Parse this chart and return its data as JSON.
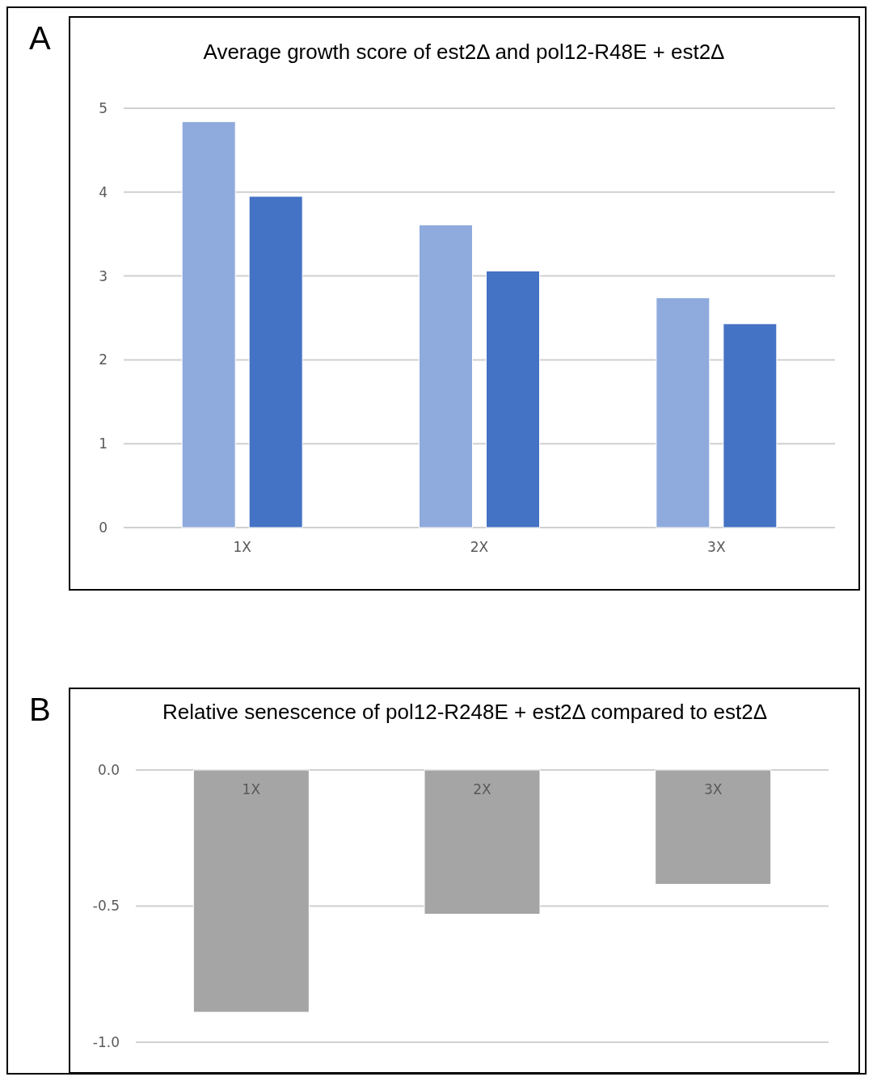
{
  "chart_data": [
    {
      "type": "bar",
      "title": "Average growth score of est2Δ and pol12-R48E + est2Δ",
      "annotations": [
        "A"
      ],
      "categories": [
        "1X",
        "2X",
        "3X"
      ],
      "series": [
        {
          "color": "#8faadc",
          "values": [
            4.84,
            3.61,
            2.74
          ]
        },
        {
          "color": "#4472c4",
          "values": [
            3.95,
            3.06,
            2.43
          ]
        }
      ],
      "ylim": [
        0,
        5
      ],
      "yticks": [
        0,
        1,
        2,
        3,
        4,
        5
      ],
      "grid": "y"
    },
    {
      "type": "bar",
      "title": "Relative senescence of pol12-R248E + est2Δ compared to est2Δ",
      "annotations": [
        "B"
      ],
      "categories": [
        "1X",
        "2X",
        "3X"
      ],
      "values": [
        -0.89,
        -0.53,
        -0.42
      ],
      "color": "#a5a5a5",
      "ylim": [
        -1,
        0
      ],
      "yticks": [
        {
          "value": -1,
          "label": "-1.0"
        },
        {
          "value": -0.5,
          "label": "-0.5"
        },
        {
          "value": 0,
          "label": "0.0"
        }
      ],
      "grid": "y"
    }
  ]
}
